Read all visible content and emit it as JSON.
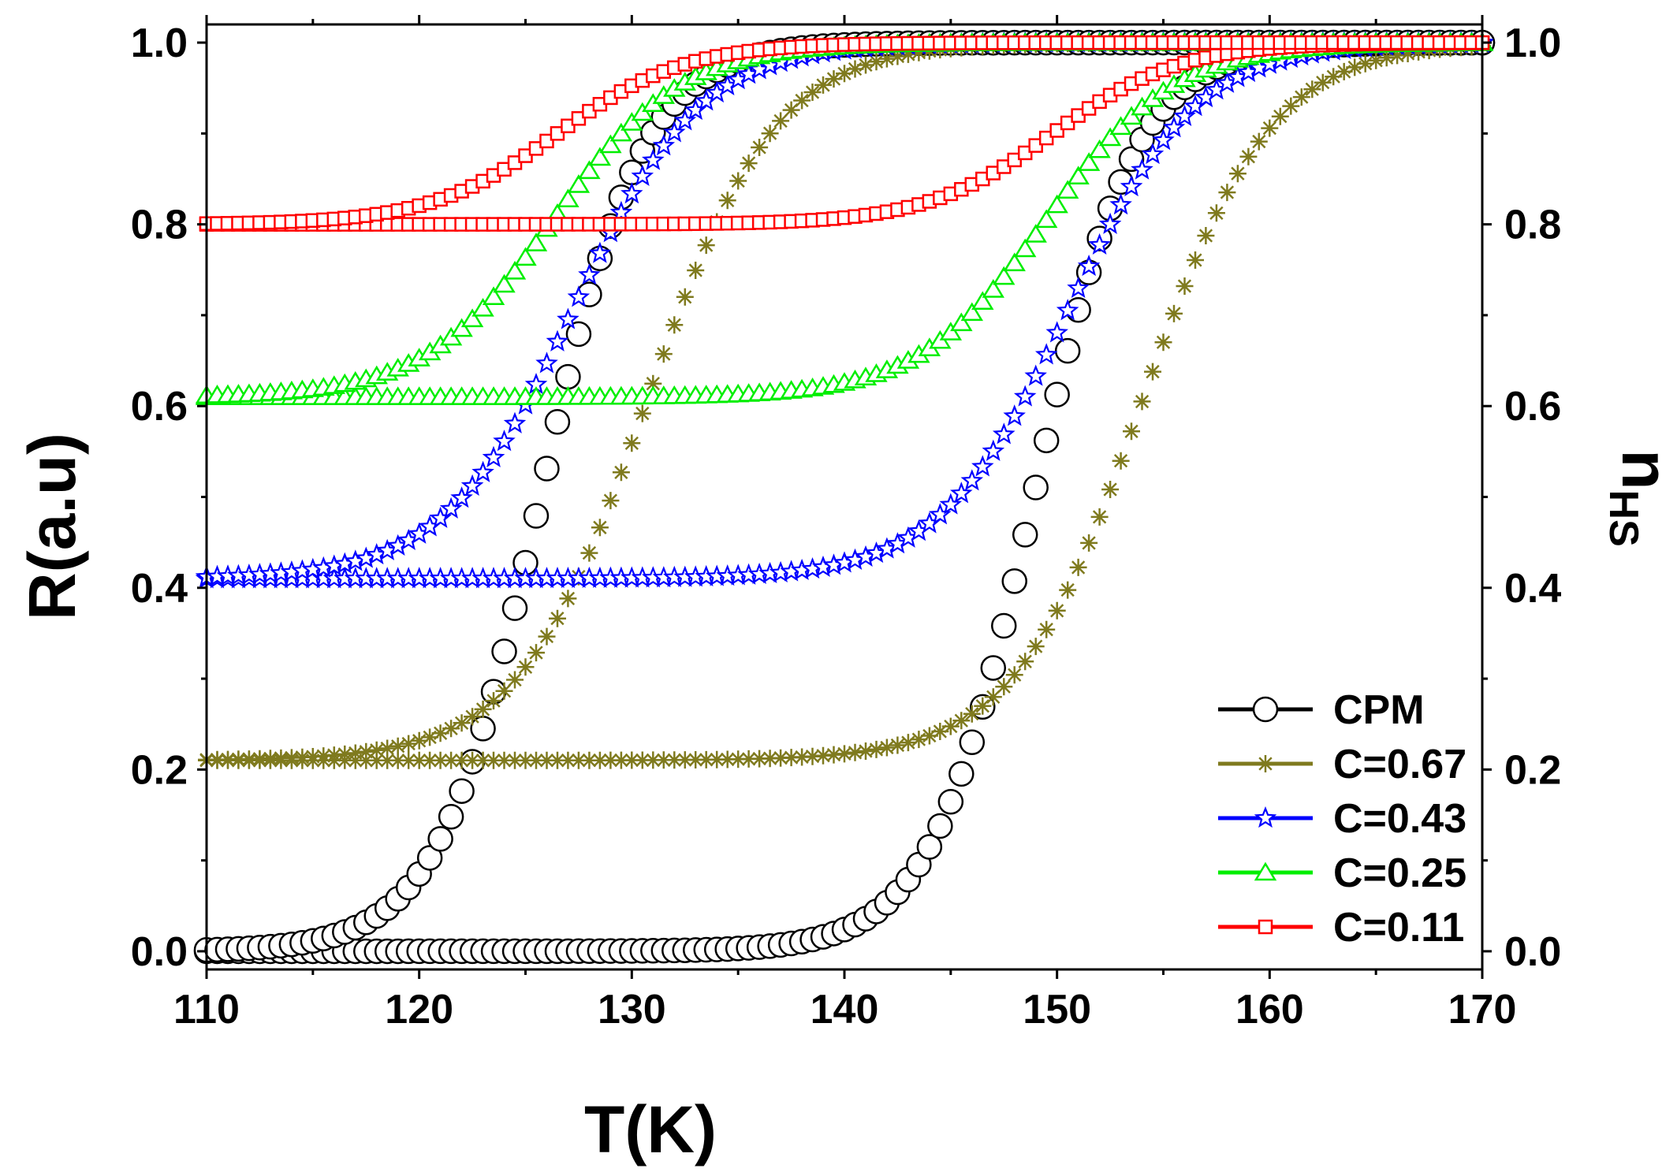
{
  "chart_data": {
    "type": "line",
    "title": "",
    "xlabel": "T(K)",
    "ylabel": "R(a.u)",
    "y2label_main": "n",
    "y2label_sub": "HS",
    "xlim": [
      110,
      170
    ],
    "ylim": [
      -0.02,
      1.02
    ],
    "xticks": [
      "110",
      "120",
      "130",
      "140",
      "150",
      "160",
      "170"
    ],
    "yticks": [
      "0.0",
      "0.2",
      "0.4",
      "0.6",
      "0.8",
      "1.0"
    ],
    "y2ticks": [
      "0.0",
      "0.2",
      "0.4",
      "0.6",
      "0.8",
      "1.0"
    ],
    "grid": false,
    "legend_position": "bottom-right",
    "series": [
      {
        "name": "CPM",
        "color": "#000000",
        "marker": "circle",
        "base": 0.0,
        "x_start": 110,
        "x_end": 170,
        "step": 0.5,
        "heating": {
          "center": 148.9,
          "width": 2.4
        },
        "cooling": {
          "center": 125.7,
          "width": 2.4
        }
      },
      {
        "name": "C=0.67",
        "color": "#7f7a1e",
        "marker": "asterisk",
        "base": 0.21,
        "x_start": 110,
        "x_end": 170,
        "step": 0.5,
        "heating": {
          "center": 154.0,
          "width": 3.0
        },
        "cooling": {
          "center": 130.7,
          "width": 3.0
        }
      },
      {
        "name": "C=0.43",
        "color": "#0000ff",
        "marker": "star",
        "base": 0.41,
        "x_start": 110,
        "x_end": 170,
        "step": 0.5,
        "heating": {
          "center": 150.5,
          "width": 3.0
        },
        "cooling": {
          "center": 127.2,
          "width": 3.0
        }
      },
      {
        "name": "C=0.25",
        "color": "#00ee00",
        "marker": "triangle",
        "base": 0.61,
        "x_start": 110,
        "x_end": 170,
        "step": 0.5,
        "heating": {
          "center": 149.5,
          "width": 3.0
        },
        "cooling": {
          "center": 126.3,
          "width": 3.0
        }
      },
      {
        "name": "C=0.11",
        "color": "#ff0000",
        "marker": "square",
        "base": 0.8,
        "x_start": 110,
        "x_end": 170,
        "step": 0.5,
        "heating": {
          "center": 149.8,
          "width": 3.0
        },
        "cooling": {
          "center": 126.5,
          "width": 3.0
        }
      }
    ]
  }
}
